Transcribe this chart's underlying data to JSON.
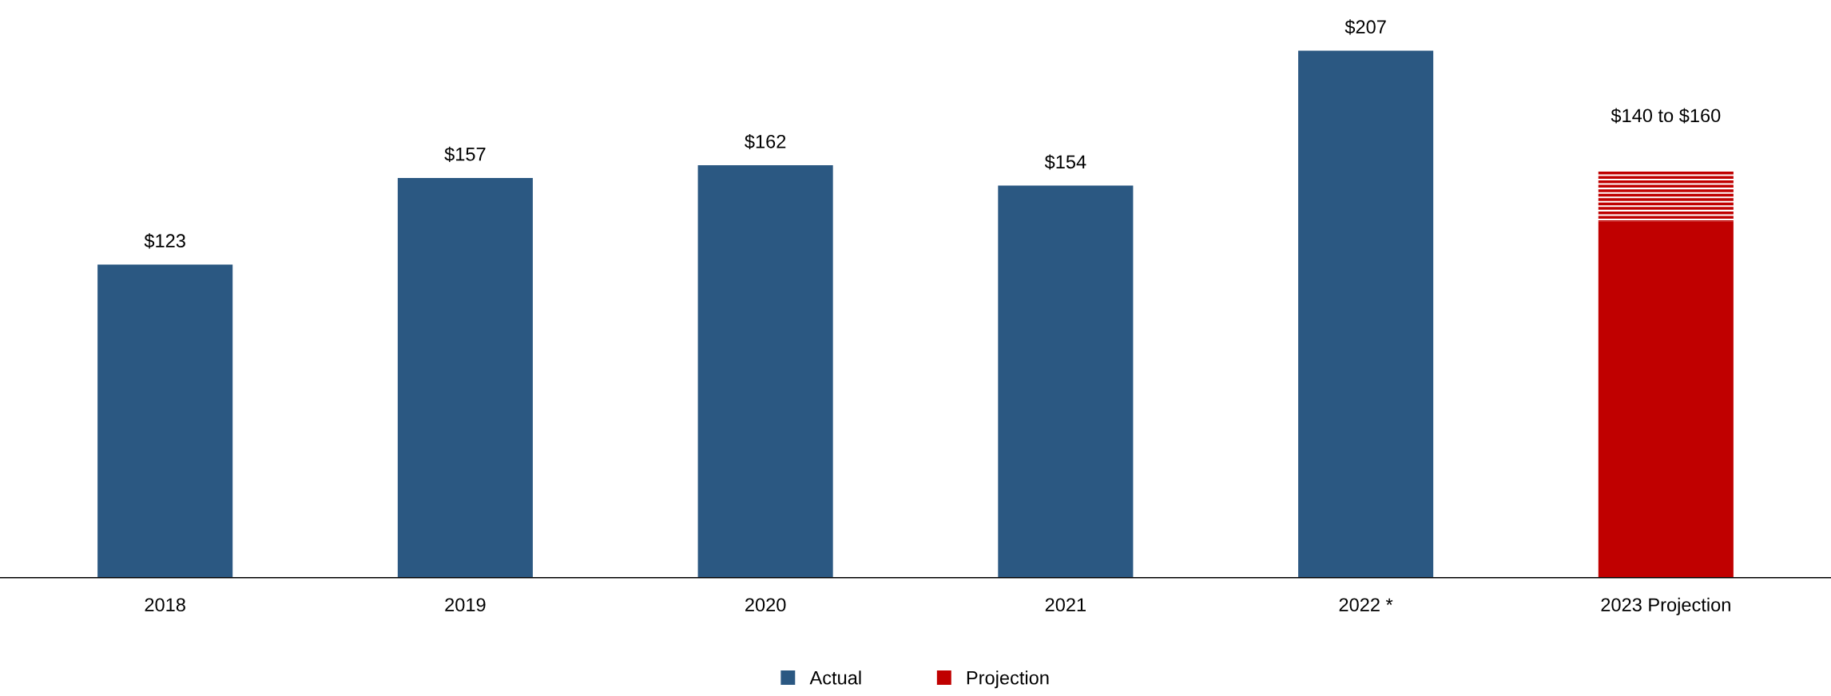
{
  "chart_data": {
    "type": "bar",
    "stacked": true,
    "categories": [
      "2018",
      "2019",
      "2020",
      "2021",
      "2022 *",
      "2023 Projection"
    ],
    "series": [
      {
        "name": "Actual",
        "color": "#2b5882",
        "values": [
          123,
          157,
          162,
          154,
          207,
          null
        ],
        "value_labels": [
          "$123",
          "$157",
          "$162",
          "$154",
          "$207",
          null
        ]
      },
      {
        "name": "Projection",
        "color": "#c00000",
        "values": [
          null,
          null,
          null,
          null,
          null,
          140
        ],
        "value_labels": [
          null,
          null,
          null,
          null,
          null,
          null
        ]
      },
      {
        "color": "#c00000",
        "values": [
          null,
          null,
          null,
          null,
          null,
          20
        ]
      }
    ],
    "annotations": [
      {
        "text": "$140 to $160",
        "x": "2023 Projection",
        "y": 160
      }
    ],
    "legend": "bottom",
    "grid": false,
    "tick_labels": "x"
  }
}
